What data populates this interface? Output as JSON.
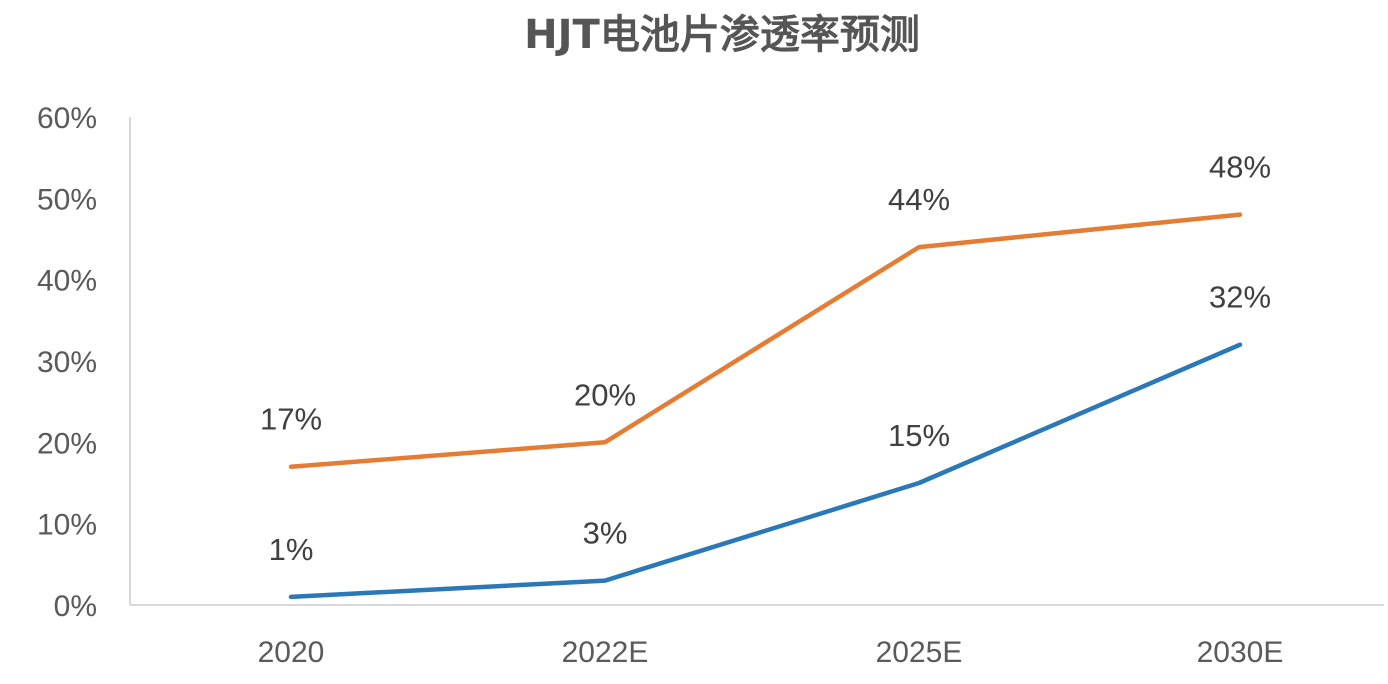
{
  "chart_data": {
    "type": "line",
    "title": "HJT电池片渗透率预测",
    "xlabel": "",
    "ylabel": "",
    "categories": [
      "2020",
      "2022E",
      "2025E",
      "2030E"
    ],
    "ylim": [
      0,
      60
    ],
    "yticks": [
      0,
      10,
      20,
      30,
      40,
      50,
      60
    ],
    "ytick_labels": [
      "0%",
      "10%",
      "20%",
      "30%",
      "40%",
      "50%",
      "60%"
    ],
    "grid": false,
    "legend": "none",
    "series": [
      {
        "values": [
          17,
          20,
          44,
          48
        ],
        "data_labels": [
          "17%",
          "20%",
          "44%",
          "48%"
        ],
        "color": "#e57c33"
      },
      {
        "values": [
          1,
          3,
          15,
          32
        ],
        "data_labels": [
          "1%",
          "3%",
          "15%",
          "32%"
        ],
        "color": "#2a78b8"
      }
    ]
  }
}
